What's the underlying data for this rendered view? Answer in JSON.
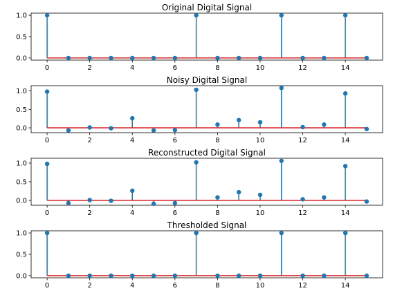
{
  "colors": {
    "stem": "#1f77b4",
    "baseline": "#d62728",
    "axis": "#000000"
  },
  "chart_data": [
    {
      "type": "stem",
      "title": "Original Digital Signal",
      "x": [
        0,
        1,
        2,
        3,
        4,
        5,
        6,
        7,
        8,
        9,
        10,
        11,
        12,
        13,
        14,
        15
      ],
      "y": [
        1,
        0,
        0,
        0,
        0,
        0,
        0,
        1,
        0,
        0,
        0,
        1,
        0,
        0,
        1,
        0
      ],
      "xlim": [
        -0.75,
        15.75
      ],
      "ylim": [
        -0.05,
        1.05
      ],
      "xticks": [
        0,
        2,
        4,
        6,
        8,
        10,
        12,
        14
      ],
      "yticks": [
        0.0,
        0.5,
        1.0
      ],
      "ytick_labels": [
        "0.0",
        "0.5",
        "1.0"
      ],
      "baseline": 0,
      "grid": false
    },
    {
      "type": "stem",
      "title": "Noisy Digital Signal",
      "x": [
        0,
        1,
        2,
        3,
        4,
        5,
        6,
        7,
        8,
        9,
        10,
        11,
        12,
        13,
        14,
        15
      ],
      "y": [
        0.98,
        -0.07,
        0.01,
        -0.01,
        0.26,
        -0.07,
        -0.06,
        1.03,
        0.09,
        0.21,
        0.15,
        1.08,
        0.02,
        0.09,
        0.93,
        -0.03
      ],
      "xlim": [
        -0.75,
        15.75
      ],
      "ylim": [
        -0.13,
        1.14
      ],
      "xticks": [
        0,
        2,
        4,
        6,
        8,
        10,
        12,
        14
      ],
      "yticks": [
        0.0,
        0.5,
        1.0
      ],
      "ytick_labels": [
        "0.0",
        "0.5",
        "1.0"
      ],
      "baseline": 0,
      "grid": false
    },
    {
      "type": "stem",
      "title": "Reconstructed Digital Signal",
      "x": [
        0,
        1,
        2,
        3,
        4,
        5,
        6,
        7,
        8,
        9,
        10,
        11,
        12,
        13,
        14,
        15
      ],
      "y": [
        0.98,
        -0.07,
        0.01,
        -0.01,
        0.26,
        -0.09,
        -0.07,
        1.02,
        0.08,
        0.22,
        0.15,
        1.06,
        0.03,
        0.08,
        0.92,
        -0.03
      ],
      "xlim": [
        -0.75,
        15.75
      ],
      "ylim": [
        -0.13,
        1.13
      ],
      "xticks": [
        0,
        2,
        4,
        6,
        8,
        10,
        12,
        14
      ],
      "yticks": [
        0.0,
        0.5,
        1.0
      ],
      "ytick_labels": [
        "0.0",
        "0.5",
        "1.0"
      ],
      "baseline": 0,
      "grid": false
    },
    {
      "type": "stem",
      "title": "Thresholded Signal",
      "x": [
        0,
        1,
        2,
        3,
        4,
        5,
        6,
        7,
        8,
        9,
        10,
        11,
        12,
        13,
        14,
        15
      ],
      "y": [
        1,
        0,
        0,
        0,
        0,
        0,
        0,
        1,
        0,
        0,
        0,
        1,
        0,
        0,
        1,
        0
      ],
      "xlim": [
        -0.75,
        15.75
      ],
      "ylim": [
        -0.05,
        1.05
      ],
      "xticks": [
        0,
        2,
        4,
        6,
        8,
        10,
        12,
        14
      ],
      "yticks": [
        0.0,
        0.5,
        1.0
      ],
      "ytick_labels": [
        "0.0",
        "0.5",
        "1.0"
      ],
      "baseline": 0,
      "grid": false
    }
  ]
}
